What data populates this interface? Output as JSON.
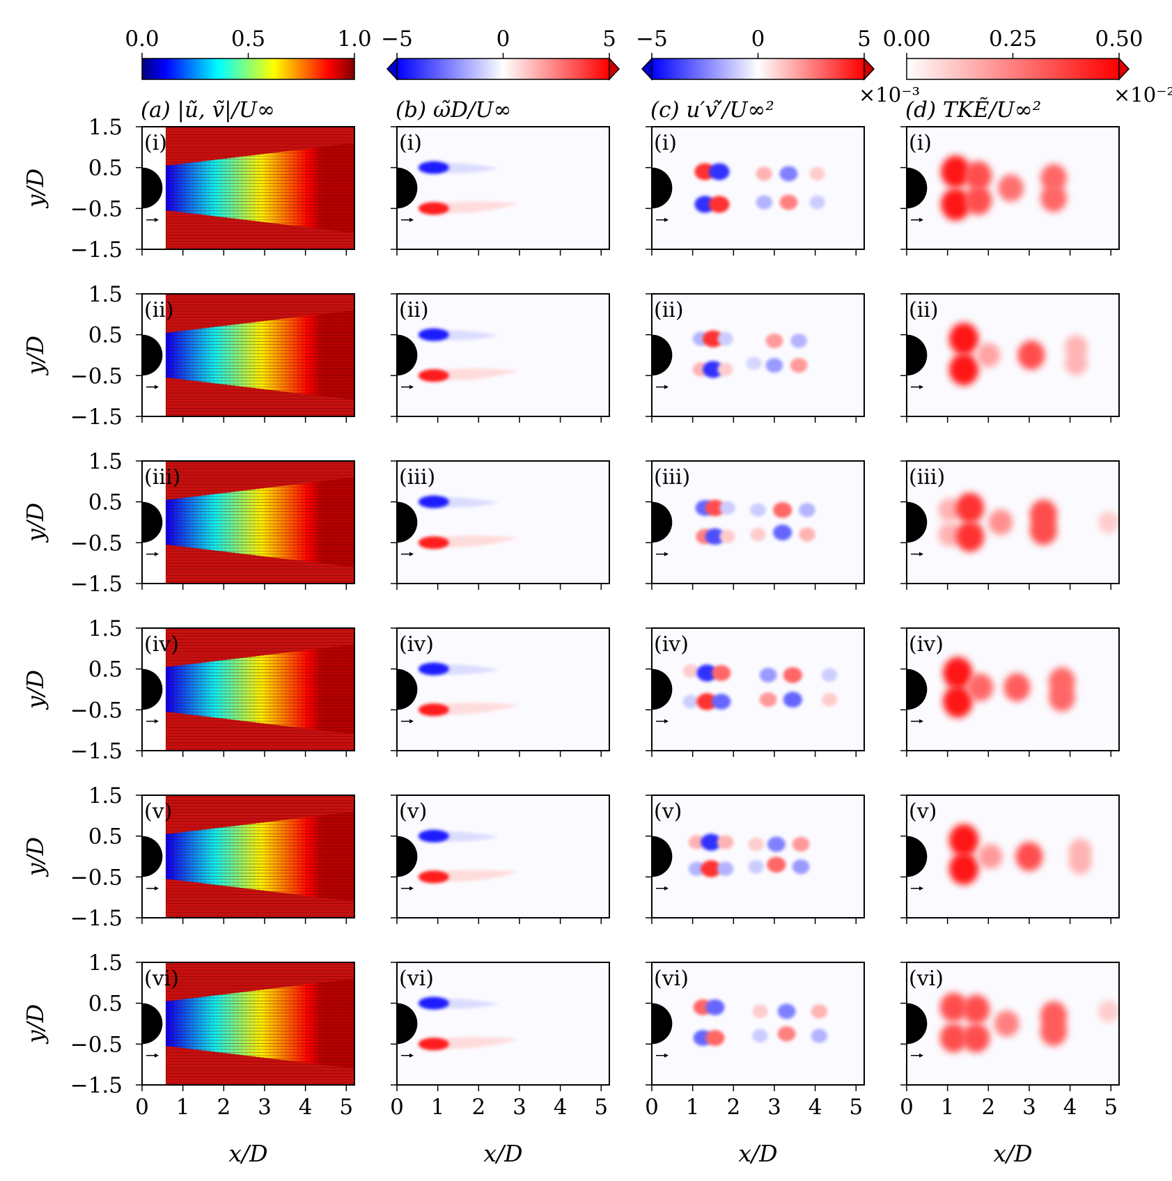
{
  "chart_data": {
    "type": "heatmap",
    "description_grid": "4 columns x 6 rows of wake-flow field panels behind a cylinder",
    "row_labels": [
      "(i)",
      "(ii)",
      "(iii)",
      "(iv)",
      "(v)",
      "(vi)"
    ],
    "x_ticks": [
      "0",
      "1",
      "2",
      "3",
      "4",
      "5"
    ],
    "y_ticks": [
      "1.5",
      "0.5",
      "−0.5",
      "−1.5"
    ],
    "xlabel": "x/D",
    "ylabel": "y/D",
    "xlim": [
      0,
      5.2
    ],
    "ylim": [
      -1.5,
      1.5
    ],
    "columns": [
      {
        "id": "a",
        "title": "(a) |ũ, ṽ|/U∞",
        "exponent": "",
        "colorbar": {
          "min": 0.0,
          "max": 1.0,
          "ticks": [
            "0.0",
            "0.5",
            "1.0"
          ],
          "tick_values": [
            0.0,
            0.5,
            1.0
          ],
          "colormap": "jet",
          "extend": "neither"
        },
        "kind": "velocity"
      },
      {
        "id": "b",
        "title": "(b) ω̃D/U∞",
        "exponent": "",
        "colorbar": {
          "min": -5,
          "max": 5,
          "ticks": [
            "−5",
            "0",
            "5"
          ],
          "tick_values": [
            -5,
            0,
            5
          ],
          "colormap": "bwr",
          "extend": "both"
        },
        "kind": "vorticity"
      },
      {
        "id": "c",
        "title": "(c) u′v′̃/U∞²",
        "exponent": "×10⁻³",
        "colorbar": {
          "min": -5,
          "max": 5,
          "ticks": [
            "−5",
            "0",
            "5"
          ],
          "tick_values": [
            -5,
            0,
            5
          ],
          "colormap": "bwr",
          "extend": "both"
        },
        "kind": "stress"
      },
      {
        "id": "d",
        "title": "(d) TKẼ/U∞²",
        "exponent": "×10⁻²",
        "colorbar": {
          "min": 0.0,
          "max": 0.5,
          "ticks": [
            "0.00",
            "0.25",
            "0.50"
          ],
          "tick_values": [
            0.0,
            0.25,
            0.5
          ],
          "colormap": "reds",
          "extend": "max"
        },
        "kind": "tke"
      }
    ],
    "rows": [
      {
        "label": "(i)",
        "stress_blobs": [
          {
            "x": 1.3,
            "y": 0.4,
            "v": 4
          },
          {
            "x": 1.65,
            "y": 0.4,
            "v": -4
          },
          {
            "x": 1.3,
            "y": -0.4,
            "v": -4
          },
          {
            "x": 1.65,
            "y": -0.4,
            "v": 4
          },
          {
            "x": 2.75,
            "y": 0.35,
            "v": 1.5
          },
          {
            "x": 3.35,
            "y": 0.35,
            "v": -2.5
          },
          {
            "x": 4.05,
            "y": 0.35,
            "v": 1
          },
          {
            "x": 2.75,
            "y": -0.35,
            "v": -1.5
          },
          {
            "x": 3.35,
            "y": -0.35,
            "v": 2.5
          },
          {
            "x": 4.05,
            "y": -0.35,
            "v": -1
          }
        ],
        "tke_blobs": [
          {
            "x": 1.2,
            "y": 0.4,
            "v": 0.45
          },
          {
            "x": 1.2,
            "y": -0.4,
            "v": 0.45
          },
          {
            "x": 1.75,
            "y": 0.3,
            "v": 0.35
          },
          {
            "x": 1.75,
            "y": -0.3,
            "v": 0.35
          },
          {
            "x": 2.55,
            "y": 0,
            "v": 0.28
          },
          {
            "x": 3.6,
            "y": 0.25,
            "v": 0.3
          },
          {
            "x": 3.6,
            "y": -0.25,
            "v": 0.3
          }
        ]
      },
      {
        "label": "(ii)",
        "stress_blobs": [
          {
            "x": 1.2,
            "y": 0.4,
            "v": -1.5
          },
          {
            "x": 1.5,
            "y": 0.4,
            "v": 4
          },
          {
            "x": 1.8,
            "y": 0.4,
            "v": -1
          },
          {
            "x": 1.2,
            "y": -0.35,
            "v": 1.5
          },
          {
            "x": 1.5,
            "y": -0.35,
            "v": -4
          },
          {
            "x": 1.8,
            "y": -0.35,
            "v": 1
          },
          {
            "x": 2.5,
            "y": -0.2,
            "v": -0.8
          },
          {
            "x": 3.0,
            "y": 0.35,
            "v": 2
          },
          {
            "x": 3.6,
            "y": 0.35,
            "v": -1.5
          },
          {
            "x": 3.0,
            "y": -0.25,
            "v": -2
          },
          {
            "x": 3.6,
            "y": -0.25,
            "v": 2
          }
        ],
        "tke_blobs": [
          {
            "x": 1.4,
            "y": 0.4,
            "v": 0.45
          },
          {
            "x": 1.4,
            "y": -0.35,
            "v": 0.45
          },
          {
            "x": 2.0,
            "y": 0,
            "v": 0.18
          },
          {
            "x": 3.05,
            "y": 0,
            "v": 0.35
          },
          {
            "x": 4.15,
            "y": 0.2,
            "v": 0.15
          },
          {
            "x": 4.15,
            "y": -0.2,
            "v": 0.15
          }
        ]
      },
      {
        "label": "(iii)",
        "stress_blobs": [
          {
            "x": 1.3,
            "y": 0.35,
            "v": -3
          },
          {
            "x": 1.55,
            "y": 0.35,
            "v": 3.5
          },
          {
            "x": 1.85,
            "y": 0.35,
            "v": -1
          },
          {
            "x": 1.3,
            "y": -0.35,
            "v": 2.5
          },
          {
            "x": 1.55,
            "y": -0.35,
            "v": -3.5
          },
          {
            "x": 1.85,
            "y": -0.35,
            "v": 1
          },
          {
            "x": 2.6,
            "y": 0.3,
            "v": -1
          },
          {
            "x": 3.2,
            "y": 0.3,
            "v": 3
          },
          {
            "x": 3.8,
            "y": 0.3,
            "v": -1.5
          },
          {
            "x": 2.6,
            "y": -0.3,
            "v": 1
          },
          {
            "x": 3.2,
            "y": -0.25,
            "v": -3
          },
          {
            "x": 3.8,
            "y": -0.3,
            "v": 1.5
          }
        ],
        "tke_blobs": [
          {
            "x": 1.05,
            "y": 0.3,
            "v": 0.15
          },
          {
            "x": 1.05,
            "y": -0.3,
            "v": 0.15
          },
          {
            "x": 1.55,
            "y": 0.35,
            "v": 0.4
          },
          {
            "x": 1.55,
            "y": -0.35,
            "v": 0.4
          },
          {
            "x": 2.3,
            "y": 0,
            "v": 0.22
          },
          {
            "x": 3.35,
            "y": 0.2,
            "v": 0.35
          },
          {
            "x": 3.35,
            "y": -0.2,
            "v": 0.35
          },
          {
            "x": 4.95,
            "y": 0,
            "v": 0.1
          }
        ]
      },
      {
        "label": "(iv)",
        "stress_blobs": [
          {
            "x": 0.95,
            "y": 0.45,
            "v": 1
          },
          {
            "x": 1.35,
            "y": 0.4,
            "v": -4
          },
          {
            "x": 1.7,
            "y": 0.4,
            "v": 3
          },
          {
            "x": 0.95,
            "y": -0.3,
            "v": -1
          },
          {
            "x": 1.35,
            "y": -0.3,
            "v": 4
          },
          {
            "x": 1.7,
            "y": -0.3,
            "v": -3
          },
          {
            "x": 2.85,
            "y": 0.35,
            "v": -2
          },
          {
            "x": 3.45,
            "y": 0.35,
            "v": 3
          },
          {
            "x": 4.35,
            "y": 0.35,
            "v": -1
          },
          {
            "x": 2.85,
            "y": -0.25,
            "v": 2
          },
          {
            "x": 3.45,
            "y": -0.25,
            "v": -3
          },
          {
            "x": 4.35,
            "y": -0.25,
            "v": 1
          }
        ],
        "tke_blobs": [
          {
            "x": 1.25,
            "y": 0.4,
            "v": 0.45
          },
          {
            "x": 1.25,
            "y": -0.3,
            "v": 0.45
          },
          {
            "x": 1.8,
            "y": 0.05,
            "v": 0.3
          },
          {
            "x": 2.7,
            "y": 0.05,
            "v": 0.32
          },
          {
            "x": 3.8,
            "y": 0.2,
            "v": 0.3
          },
          {
            "x": 3.8,
            "y": -0.2,
            "v": 0.3
          }
        ]
      },
      {
        "label": "(v)",
        "stress_blobs": [
          {
            "x": 1.1,
            "y": 0.35,
            "v": 1.5
          },
          {
            "x": 1.45,
            "y": 0.35,
            "v": -4
          },
          {
            "x": 1.8,
            "y": 0.35,
            "v": 1.5
          },
          {
            "x": 1.1,
            "y": -0.3,
            "v": -1.5
          },
          {
            "x": 1.45,
            "y": -0.3,
            "v": 4
          },
          {
            "x": 1.8,
            "y": -0.3,
            "v": -1.5
          },
          {
            "x": 2.55,
            "y": 0.3,
            "v": 1
          },
          {
            "x": 3.05,
            "y": 0.3,
            "v": -2.5
          },
          {
            "x": 3.65,
            "y": 0.3,
            "v": 2
          },
          {
            "x": 2.55,
            "y": -0.25,
            "v": -1
          },
          {
            "x": 3.05,
            "y": -0.2,
            "v": 3
          },
          {
            "x": 3.65,
            "y": -0.25,
            "v": -2
          }
        ],
        "tke_blobs": [
          {
            "x": 1.4,
            "y": 0.4,
            "v": 0.45
          },
          {
            "x": 1.4,
            "y": -0.3,
            "v": 0.45
          },
          {
            "x": 2.05,
            "y": 0,
            "v": 0.2
          },
          {
            "x": 3.0,
            "y": 0,
            "v": 0.35
          },
          {
            "x": 4.25,
            "y": 0.15,
            "v": 0.15
          },
          {
            "x": 4.25,
            "y": -0.15,
            "v": 0.15
          }
        ]
      },
      {
        "label": "(vi)",
        "stress_blobs": [
          {
            "x": 1.25,
            "y": 0.4,
            "v": 3
          },
          {
            "x": 1.55,
            "y": 0.4,
            "v": -3
          },
          {
            "x": 1.25,
            "y": -0.35,
            "v": -3
          },
          {
            "x": 1.55,
            "y": -0.35,
            "v": 3
          },
          {
            "x": 2.65,
            "y": 0.3,
            "v": 1
          },
          {
            "x": 3.3,
            "y": 0.3,
            "v": -2.5
          },
          {
            "x": 4.1,
            "y": 0.3,
            "v": 1.5
          },
          {
            "x": 2.65,
            "y": -0.3,
            "v": -1
          },
          {
            "x": 3.3,
            "y": -0.25,
            "v": 2.5
          },
          {
            "x": 4.1,
            "y": -0.3,
            "v": -1.5
          }
        ],
        "tke_blobs": [
          {
            "x": 1.15,
            "y": 0.4,
            "v": 0.35
          },
          {
            "x": 1.15,
            "y": -0.35,
            "v": 0.35
          },
          {
            "x": 1.7,
            "y": 0.35,
            "v": 0.35
          },
          {
            "x": 1.7,
            "y": -0.35,
            "v": 0.35
          },
          {
            "x": 2.45,
            "y": 0,
            "v": 0.25
          },
          {
            "x": 3.6,
            "y": 0.2,
            "v": 0.32
          },
          {
            "x": 3.6,
            "y": -0.2,
            "v": 0.32
          },
          {
            "x": 4.95,
            "y": 0.3,
            "v": 0.1
          }
        ]
      }
    ]
  },
  "colors": {
    "blue": "#0000ff",
    "red": "#ff0000",
    "black": "#000000"
  }
}
